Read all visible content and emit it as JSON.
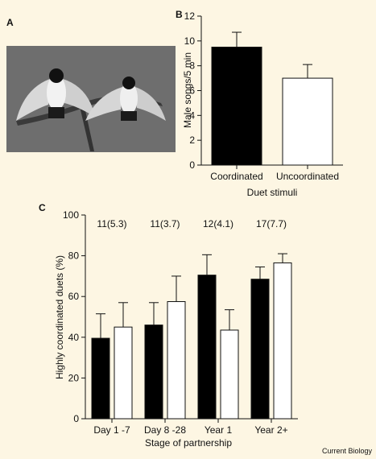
{
  "panels": {
    "a": "A",
    "b": "B",
    "c": "C"
  },
  "colors": {
    "background": "#fdf6e3",
    "photo_bg": "#6e6e6e",
    "coordinated": "#000000",
    "uncoordinated": "#ffffff"
  },
  "credit": "Current Biology",
  "chart_data": [
    {
      "panel": "B",
      "type": "bar",
      "categories": [
        "Coordinated",
        "Uncoordinated"
      ],
      "values": [
        9.5,
        7.0
      ],
      "errors": [
        1.2,
        1.1
      ],
      "fills": [
        "#000000",
        "#ffffff"
      ],
      "xlabel": "Duet stimuli",
      "ylabel": "Male songs/5 min",
      "ylim": [
        0,
        12
      ],
      "yticks": [
        0,
        2,
        4,
        6,
        8,
        10,
        12
      ],
      "grid": false
    },
    {
      "panel": "C",
      "type": "bar",
      "categories": [
        "Day 1 -7",
        "Day 8 -28",
        "Year 1",
        "Year 2+"
      ],
      "series": [
        {
          "values": [
            39.5,
            46,
            70.5,
            68.5
          ],
          "errors": [
            12,
            11,
            10,
            6
          ],
          "color": "#000000"
        },
        {
          "values": [
            45,
            57.5,
            43.5,
            76.5
          ],
          "errors": [
            12,
            12.5,
            10,
            4.5
          ],
          "color": "#ffffff"
        }
      ],
      "annotations": [
        "11(5.3)",
        "11(3.7)",
        "12(4.1)",
        "17(7.7)"
      ],
      "xlabel": "Stage of partnership",
      "ylabel": "Highly coordinated duets (%)",
      "ylim": [
        0,
        100
      ],
      "yticks": [
        0,
        20,
        40,
        60,
        80,
        100
      ],
      "grid": false
    }
  ]
}
